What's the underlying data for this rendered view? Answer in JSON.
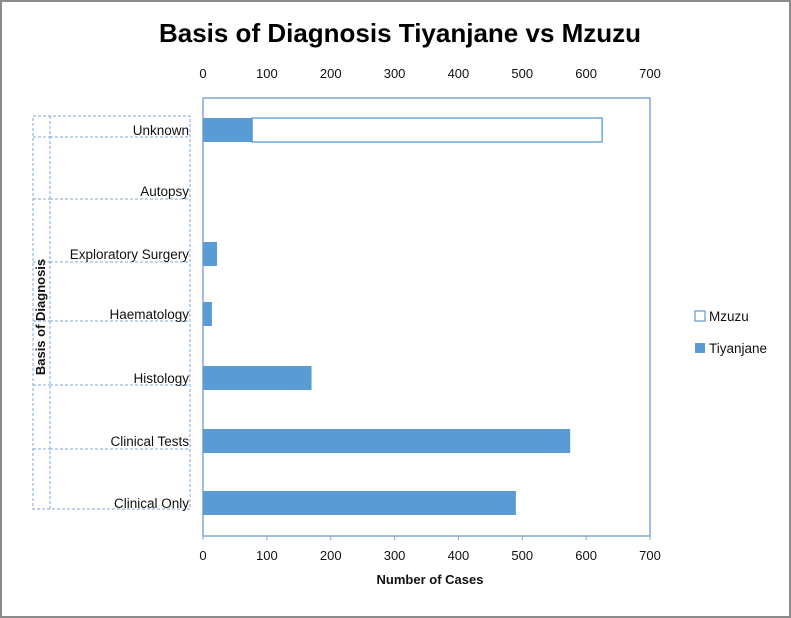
{
  "chart_data": {
    "type": "bar",
    "orientation": "horizontal",
    "stacked": true,
    "title": "Basis of Diagnosis Tiyanjane vs Mzuzu",
    "xlabel": "Number of Cases",
    "ylabel": "Basis of Diagnosis",
    "xlim": [
      0,
      700
    ],
    "xticks": [
      "0",
      "100",
      "200",
      "300",
      "400",
      "500",
      "600",
      "700"
    ],
    "categories": [
      "Unknown",
      "Autopsy",
      "Exploratory Surgery",
      "Haematology",
      "Histology",
      "Clinical Tests",
      "Clinical Only"
    ],
    "series": [
      {
        "name": "Tiyanjane",
        "values": [
          77,
          0,
          22,
          14,
          170,
          575,
          490
        ],
        "color": "#5b9bd5"
      },
      {
        "name": "Mzuzu",
        "values": [
          548,
          0,
          0,
          0,
          0,
          0,
          0
        ],
        "color": "#ffffff"
      }
    ],
    "legend": [
      "Mzuzu",
      "Tiyanjane"
    ],
    "legend_position": "right",
    "grid": false
  }
}
